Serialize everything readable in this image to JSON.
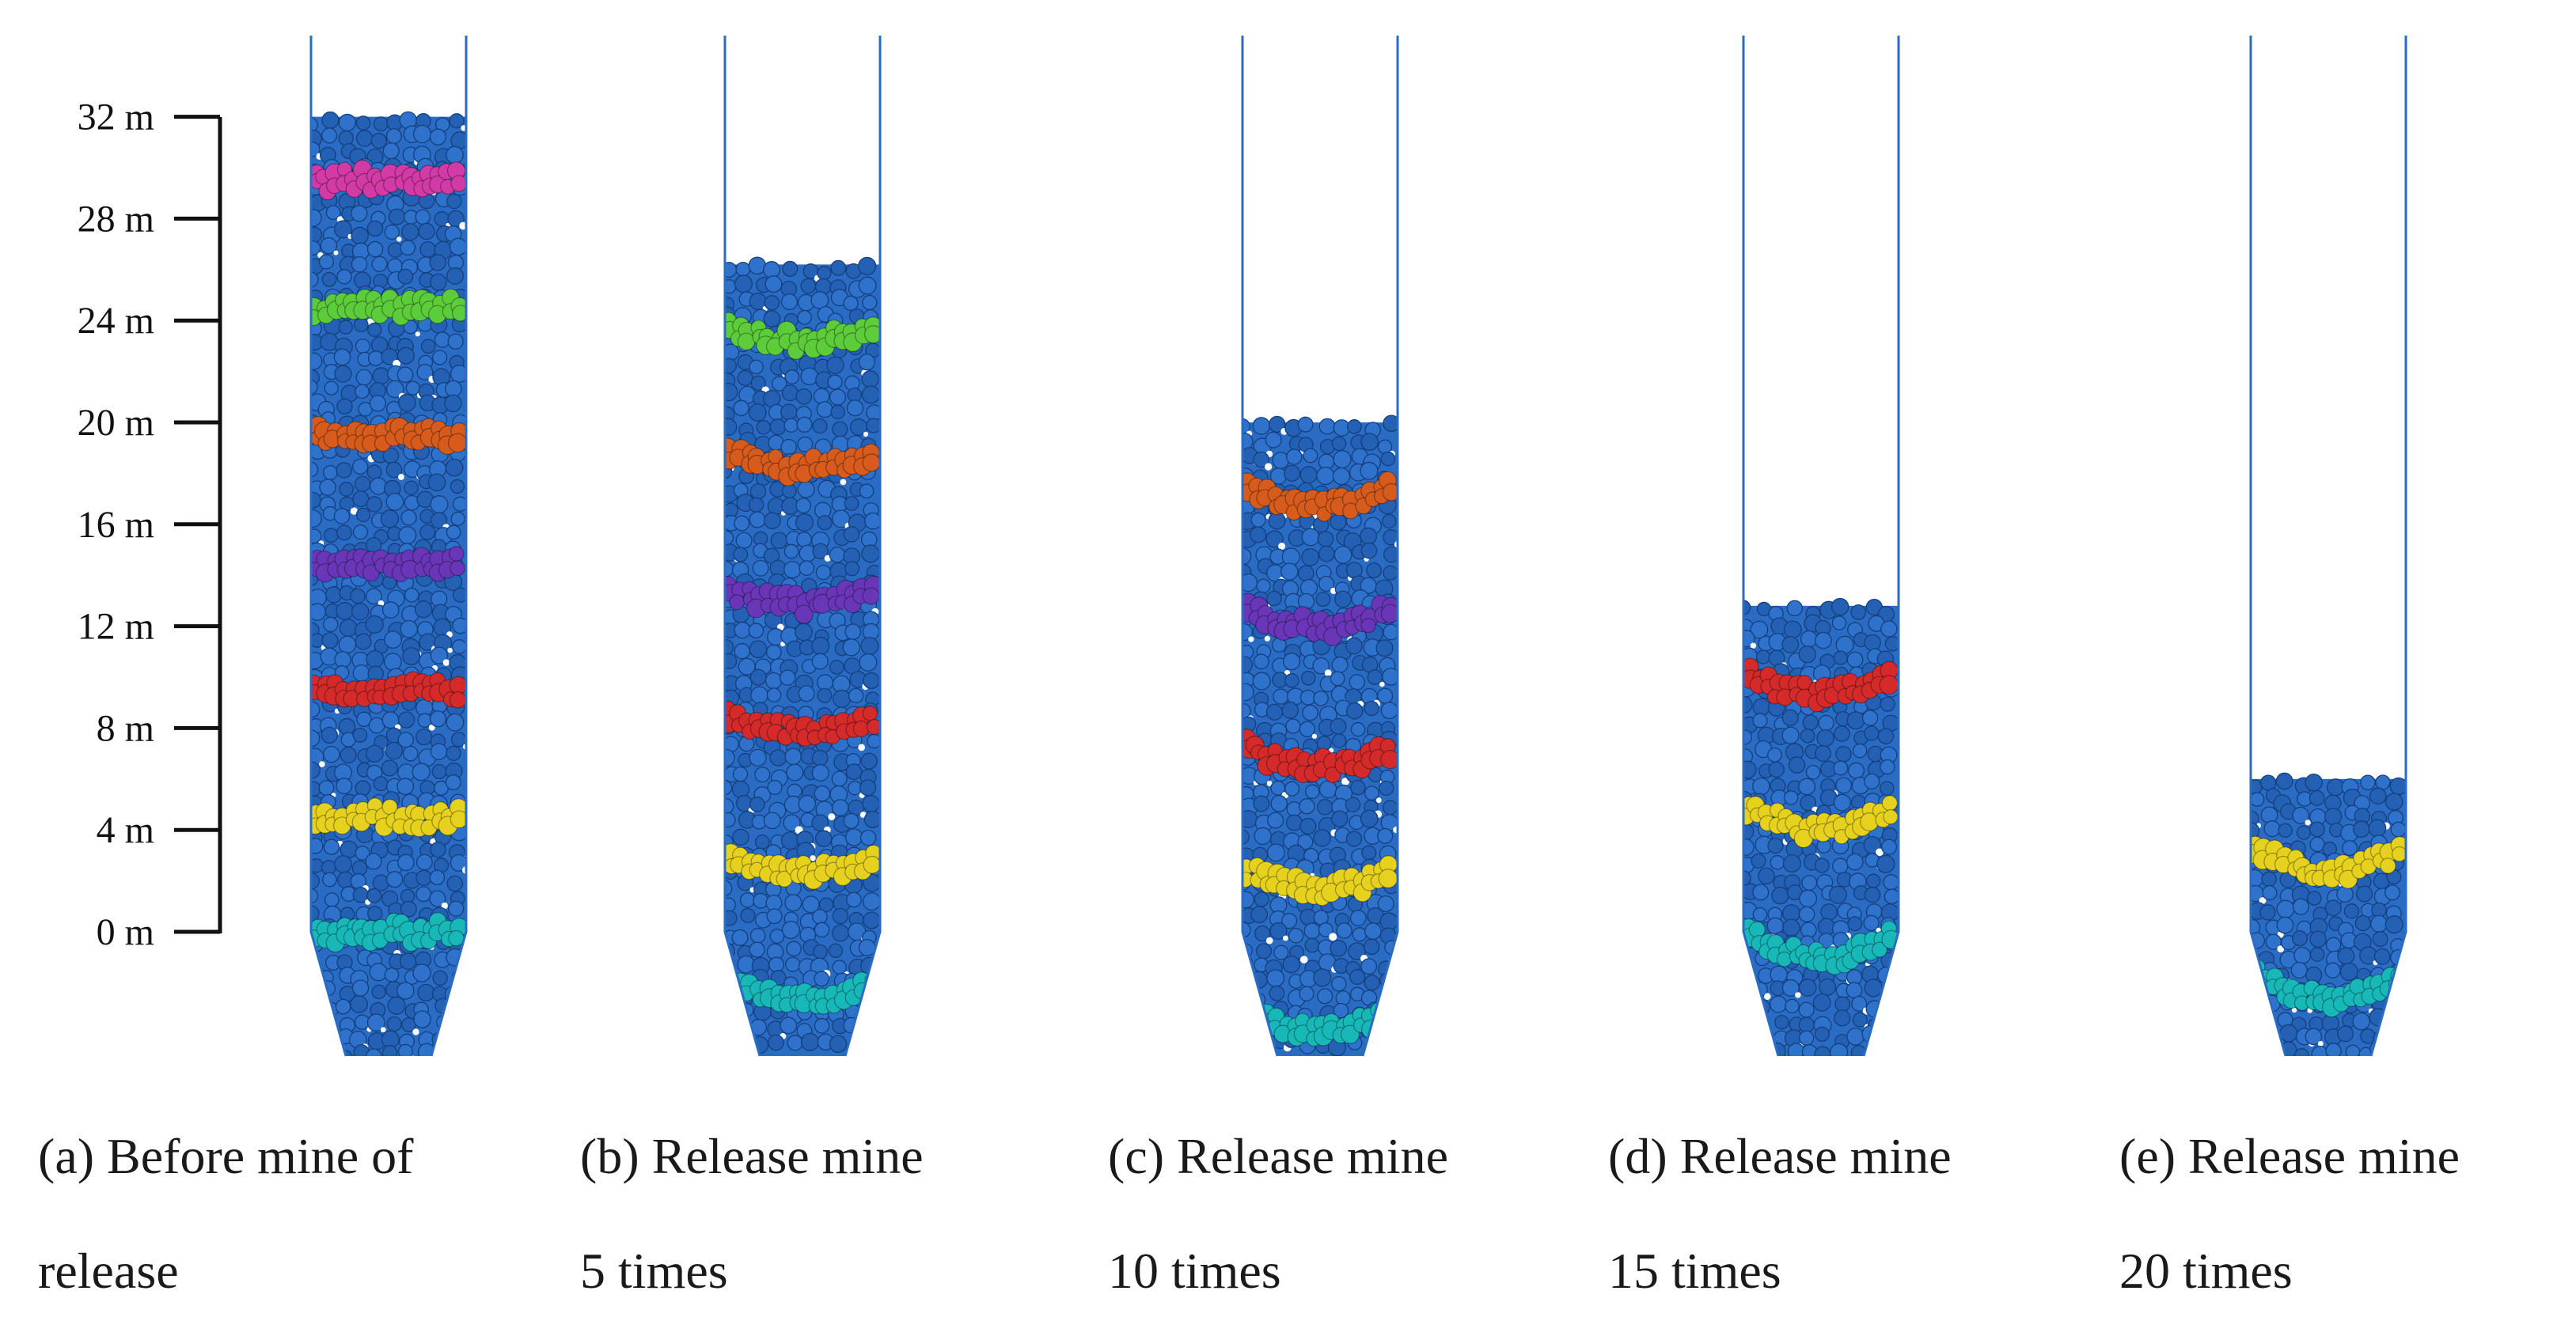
{
  "axis": {
    "ticks": [
      "32 m",
      "28 m",
      "24 m",
      "20 m",
      "16 m",
      "12 m",
      "8 m",
      "4 m",
      "0 m"
    ]
  },
  "layer_colors": [
    "#18b8b8",
    "#e6d21e",
    "#d42a2a",
    "#6a36b8",
    "#d65b1c",
    "#5ccc3a",
    "#d23aa6"
  ],
  "particle_color": "#2a6bc4",
  "panels": [
    {
      "id": "a",
      "caption_line1": "(a) Before mine of",
      "caption_line2": "release",
      "fill_level_m": 32,
      "layers_m": [
        0,
        4.5,
        9.5,
        14.5,
        19.5,
        24.5,
        29.5
      ]
    },
    {
      "id": "b",
      "caption_line1": "(b) Release mine",
      "caption_line2": "5 times",
      "fill_level_m": 26.2,
      "layers_m": [
        -2,
        3,
        8.5,
        13.5,
        18.8,
        23.8
      ]
    },
    {
      "id": "c",
      "caption_line1": "(c) Release mine",
      "caption_line2": "10 times",
      "fill_level_m": 20,
      "layers_m": [
        -3,
        2.5,
        7.3,
        12.8,
        17.6
      ]
    },
    {
      "id": "d",
      "caption_line1": "(d) Release mine",
      "caption_line2": "15 times",
      "fill_level_m": 12.8,
      "layers_m": [
        0,
        5,
        10.3
      ]
    },
    {
      "id": "e",
      "caption_line1": "(e) Release mine",
      "caption_line2": "20 times",
      "fill_level_m": 6,
      "layers_m": [
        -1.5,
        3.5
      ]
    }
  ]
}
